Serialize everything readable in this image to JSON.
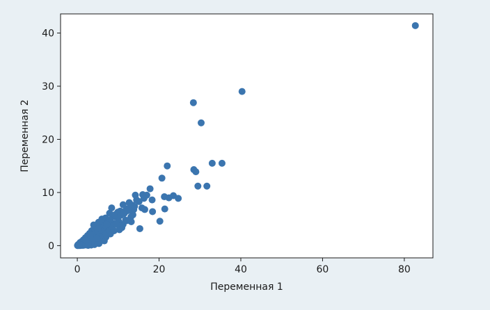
{
  "chart_data": {
    "type": "scatter",
    "title": "",
    "xlabel": "Переменная 1",
    "ylabel": "Переменная 2",
    "xlim": [
      -4.1,
      87
    ],
    "ylim": [
      -2.3,
      43.6
    ],
    "x_ticks": [
      0,
      20,
      40,
      60,
      80
    ],
    "y_ticks": [
      0,
      10,
      20,
      30,
      40
    ],
    "x_tick_labels": [
      "0",
      "20",
      "40",
      "60",
      "80"
    ],
    "y_tick_labels": [
      "0",
      "10",
      "20",
      "30",
      "40"
    ],
    "grid": false,
    "legend": "none",
    "marker_color": "#3b75af",
    "background_color": "#e9f0f4",
    "plot_background": "#ffffff",
    "series": [
      {
        "x": [
          82.7,
          40.3,
          28.4,
          30.3,
          28.5,
          29.0,
          33.0,
          35.4,
          29.5,
          31.7,
          22.0,
          20.7,
          23.5,
          22.4,
          21.3,
          24.7,
          20.2,
          21.4,
          18.4,
          17.8,
          17.0,
          16.0,
          15.1,
          14.2,
          16.3,
          14.5,
          13.5,
          12.7,
          15.8,
          13.8,
          12.9,
          12.0,
          11.2,
          13.6,
          11.6,
          10.5,
          9.8,
          15.3,
          18.3,
          11.2,
          8.4,
          9.4,
          10.1,
          7.9,
          8.8,
          6.9,
          7.5,
          6.4,
          7.3,
          5.9,
          5.2,
          6.2,
          4.7,
          5.6,
          4.1,
          4.9,
          3.5,
          3.9,
          3.0,
          3.3,
          2.5,
          2.8,
          2.0,
          2.2,
          1.5,
          1.7,
          1.1,
          1.2,
          0.7,
          0.8,
          0.4,
          0.5,
          0.2,
          0.3,
          0.1,
          0.05,
          9.0,
          10.9,
          12.1,
          8.1,
          7.0,
          5.8,
          6.6,
          4.5,
          5.3,
          3.7,
          4.2,
          2.9,
          3.4,
          2.3,
          2.6,
          1.8,
          1.4,
          1.0,
          0.6,
          0.9,
          1.6,
          2.4,
          3.1,
          3.8,
          4.4,
          5.0,
          5.7,
          6.3,
          6.8,
          7.4,
          8.0,
          8.6,
          9.2,
          9.9,
          10.6,
          11.4,
          12.4,
          13.1,
          14.0,
          8.3,
          7.6,
          6.7,
          5.5,
          4.8,
          3.6,
          2.7,
          1.9,
          1.3,
          0.9,
          0.5,
          0.2,
          4.0,
          6.0,
          8.5,
          10.3,
          11.8,
          13.2,
          16.5,
          9.6,
          7.2,
          5.1,
          3.2,
          2.1
        ],
        "y": [
          41.4,
          29.0,
          26.9,
          23.1,
          14.3,
          13.9,
          15.5,
          15.5,
          11.2,
          11.2,
          15.0,
          12.7,
          9.4,
          9.0,
          9.2,
          8.9,
          4.6,
          6.9,
          6.4,
          10.7,
          9.5,
          9.6,
          8.3,
          9.5,
          8.9,
          8.6,
          7.6,
          8.1,
          7.1,
          6.8,
          7.3,
          6.9,
          7.7,
          5.8,
          6.2,
          6.5,
          6.0,
          3.2,
          8.6,
          4.0,
          7.1,
          5.4,
          4.6,
          6.1,
          4.2,
          5.2,
          3.8,
          4.5,
          2.9,
          3.9,
          4.4,
          2.6,
          3.6,
          2.3,
          3.3,
          1.9,
          2.8,
          1.5,
          2.3,
          1.1,
          1.9,
          0.8,
          1.5,
          0.6,
          1.1,
          0.4,
          0.8,
          0.3,
          0.6,
          0.2,
          0.3,
          0.1,
          0.2,
          0.05,
          0.1,
          0.02,
          2.8,
          3.4,
          4.7,
          2.2,
          1.6,
          1.3,
          0.9,
          0.7,
          0.4,
          0.5,
          0.2,
          0.4,
          0.1,
          0.2,
          0.05,
          0.1,
          0.05,
          0.05,
          0.02,
          0.3,
          0.6,
          0.9,
          1.2,
          1.8,
          2.2,
          2.6,
          3.0,
          3.4,
          3.8,
          4.2,
          4.8,
          5.5,
          5.8,
          6.3,
          5.7,
          6.0,
          6.6,
          5.4,
          7.4,
          3.1,
          2.5,
          2.0,
          1.7,
          1.4,
          0.9,
          0.5,
          0.3,
          0.2,
          0.1,
          0.05,
          0.02,
          3.9,
          5.0,
          3.6,
          3.0,
          4.8,
          4.5,
          6.8,
          4.0,
          4.0,
          3.2,
          2.0,
          1.0
        ]
      }
    ]
  }
}
